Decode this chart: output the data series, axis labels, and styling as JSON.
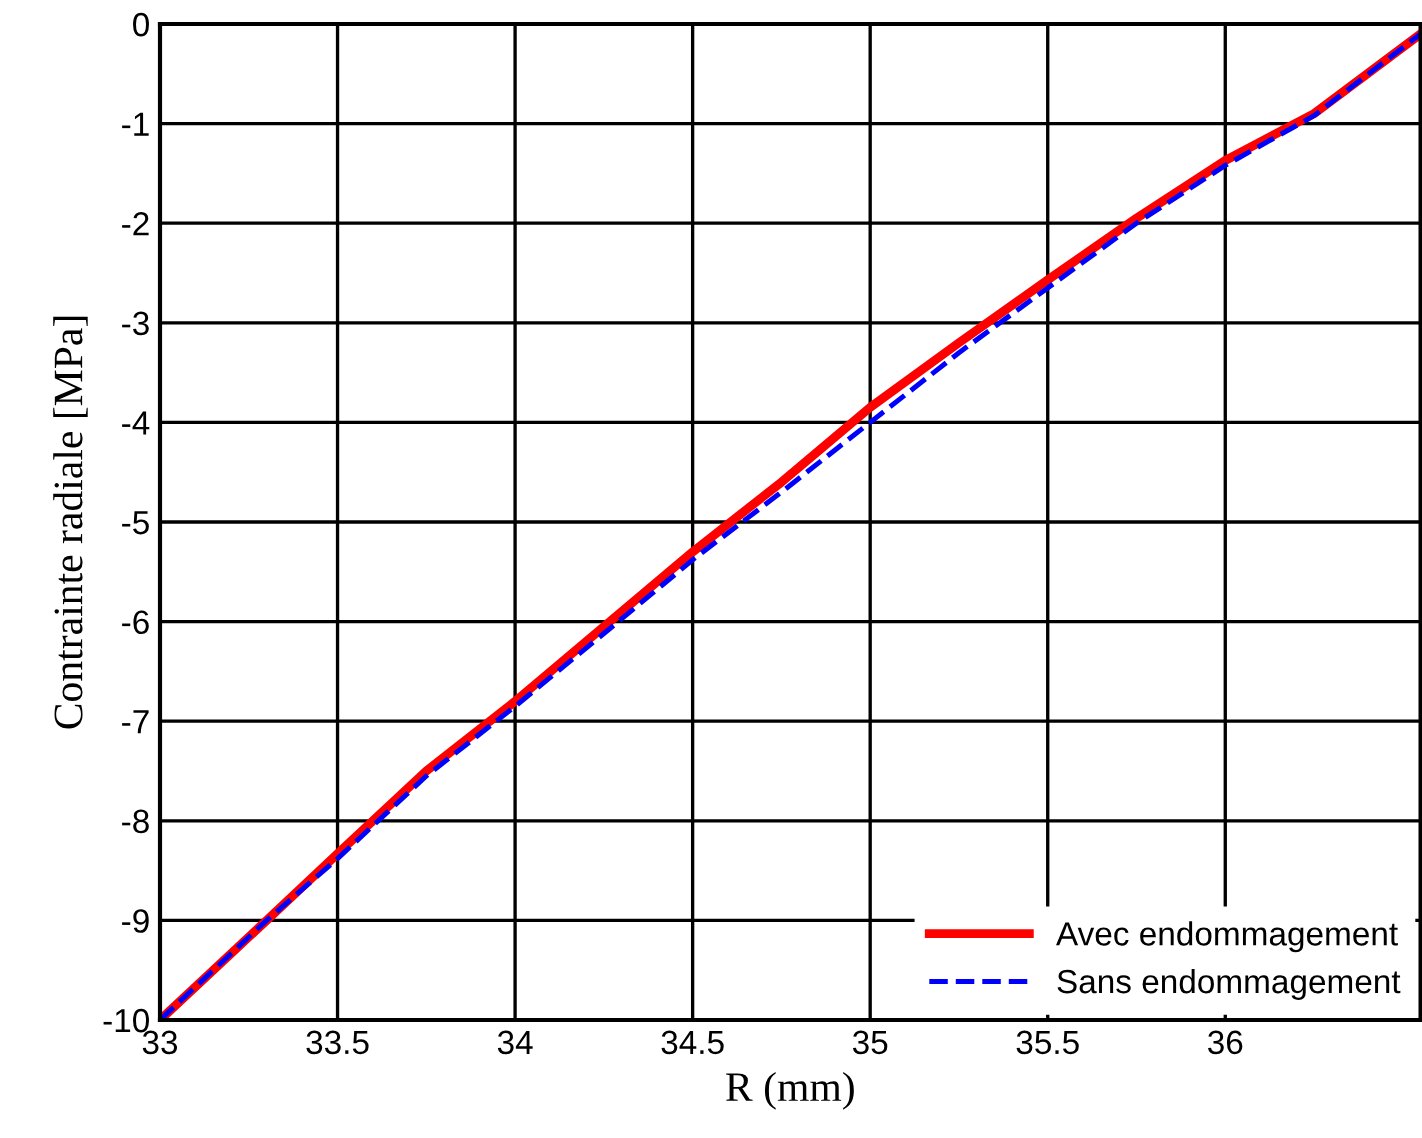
{
  "chart_data": {
    "type": "line",
    "xlabel": "R (mm)",
    "ylabel": "Contrainte radiale [MPa]",
    "xlim": [
      33,
      36.55
    ],
    "ylim": [
      -10,
      0
    ],
    "xticks": [
      33,
      33.5,
      34,
      34.5,
      35,
      35.5,
      36
    ],
    "yticks": [
      -10,
      -9,
      -8,
      -7,
      -6,
      -5,
      -4,
      -3,
      -2,
      -1,
      0
    ],
    "grid": true,
    "legend": "bottom right",
    "x": [
      33,
      33.3,
      33.5,
      33.75,
      34,
      34.25,
      34.5,
      34.75,
      35,
      35.25,
      35.5,
      35.75,
      36,
      36.25,
      36.55
    ],
    "series": [
      {
        "name": "Avec endommagement",
        "color": "#ff0000",
        "line_style": "solid",
        "values": [
          -10,
          -9.0,
          -8.33,
          -7.5,
          -6.8,
          -6.05,
          -5.3,
          -4.6,
          -3.85,
          -3.2,
          -2.57,
          -1.95,
          -1.37,
          -0.9,
          -0.1
        ]
      },
      {
        "name": "Sans endommagement",
        "color": "#0000ff",
        "line_style": "dashed",
        "values": [
          -10,
          -9.0,
          -8.38,
          -7.55,
          -6.85,
          -6.12,
          -5.38,
          -4.7,
          -4.0,
          -3.3,
          -2.65,
          -2.0,
          -1.42,
          -0.92,
          -0.1
        ]
      }
    ]
  }
}
